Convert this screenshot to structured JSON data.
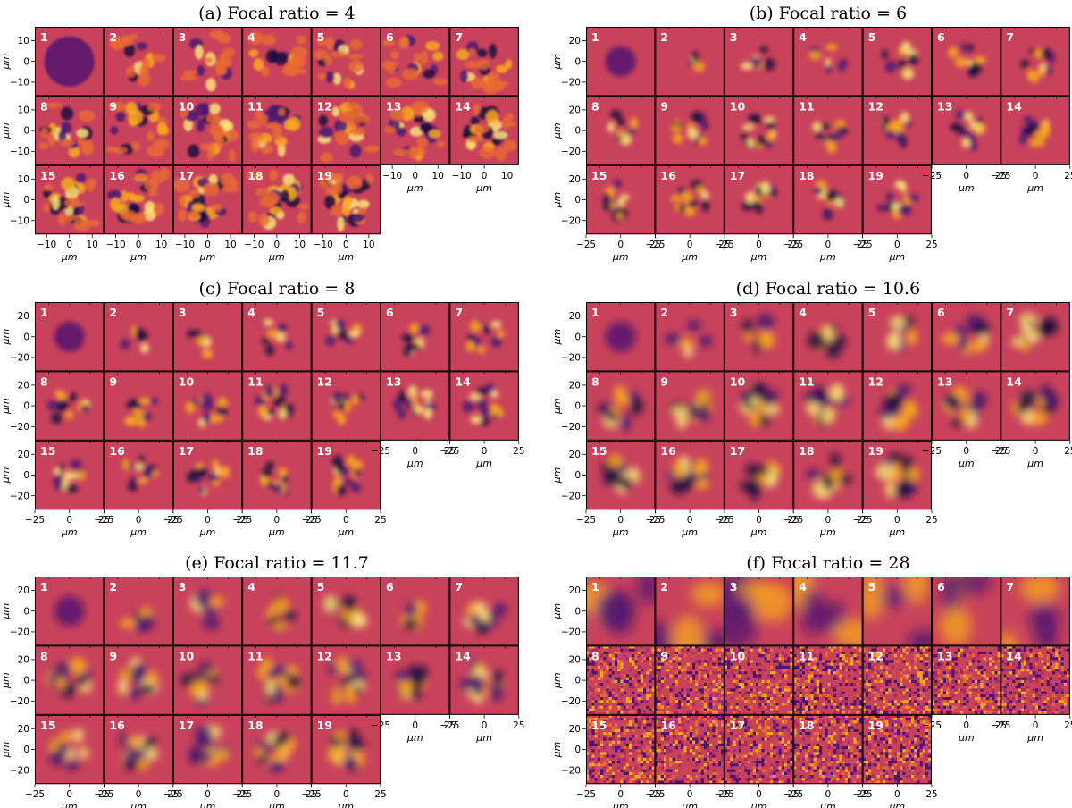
{
  "figure": {
    "colormap": [
      "#1c0b3d",
      "#4c1470",
      "#a22c6e",
      "#c8425b",
      "#ea6a33",
      "#f9a91c",
      "#fbe27a"
    ],
    "background_color": "#c8425b",
    "panels": [
      {
        "title": "(a) Focal ratio = 4",
        "x_label": "μm",
        "y_label": "μm",
        "x_ticks": [
          "−10",
          "0",
          "10"
        ],
        "y_ticks": [
          "10",
          "0",
          "−10"
        ],
        "xlim": [
          -15,
          15
        ],
        "ylim": [
          -15,
          15
        ],
        "modes": [
          "1",
          "2",
          "3",
          "4",
          "5",
          "6",
          "7",
          "8",
          "9",
          "10",
          "11",
          "12",
          "13",
          "14",
          "15",
          "16",
          "17",
          "18",
          "19"
        ]
      },
      {
        "title": "(b) Focal ratio = 6",
        "x_label": "μm",
        "y_label": "μm",
        "x_ticks": [
          "−25",
          "0",
          "25"
        ],
        "y_ticks": [
          "20",
          "0",
          "−20"
        ],
        "xlim": [
          -25,
          25
        ],
        "ylim": [
          -25,
          25
        ],
        "modes": [
          "1",
          "2",
          "3",
          "4",
          "5",
          "6",
          "7",
          "8",
          "9",
          "10",
          "11",
          "12",
          "13",
          "14",
          "15",
          "16",
          "17",
          "18",
          "19"
        ]
      },
      {
        "title": "(c) Focal ratio = 8",
        "x_label": "μm",
        "y_label": "μm",
        "x_ticks": [
          "−25",
          "0",
          "25"
        ],
        "y_ticks": [
          "20",
          "0",
          "−20"
        ],
        "xlim": [
          -25,
          25
        ],
        "ylim": [
          -25,
          25
        ],
        "modes": [
          "1",
          "2",
          "3",
          "4",
          "5",
          "6",
          "7",
          "8",
          "9",
          "10",
          "11",
          "12",
          "13",
          "14",
          "15",
          "16",
          "17",
          "18",
          "19"
        ]
      },
      {
        "title": "(d) Focal ratio = 10.6",
        "x_label": "μm",
        "y_label": "μm",
        "x_ticks": [
          "−25",
          "0",
          "25"
        ],
        "y_ticks": [
          "20",
          "0",
          "−20"
        ],
        "xlim": [
          -25,
          25
        ],
        "ylim": [
          -25,
          25
        ],
        "modes": [
          "1",
          "2",
          "3",
          "4",
          "5",
          "6",
          "7",
          "8",
          "9",
          "10",
          "11",
          "12",
          "13",
          "14",
          "15",
          "16",
          "17",
          "18",
          "19"
        ]
      },
      {
        "title": "(e) Focal ratio = 11.7",
        "x_label": "μm",
        "y_label": "μm",
        "x_ticks": [
          "−25",
          "0",
          "25"
        ],
        "y_ticks": [
          "20",
          "0",
          "−20"
        ],
        "xlim": [
          -25,
          25
        ],
        "ylim": [
          -25,
          25
        ],
        "modes": [
          "1",
          "2",
          "3",
          "4",
          "5",
          "6",
          "7",
          "8",
          "9",
          "10",
          "11",
          "12",
          "13",
          "14",
          "15",
          "16",
          "17",
          "18",
          "19"
        ]
      },
      {
        "title": "(f) Focal ratio = 28",
        "x_label": "μm",
        "y_label": "μm",
        "x_ticks": [
          "−25",
          "0",
          "25"
        ],
        "y_ticks": [
          "20",
          "0",
          "−20"
        ],
        "xlim": [
          -25,
          25
        ],
        "ylim": [
          -25,
          25
        ],
        "modes": [
          "1",
          "2",
          "3",
          "4",
          "5",
          "6",
          "7",
          "8",
          "9",
          "10",
          "11",
          "12",
          "13",
          "14",
          "15",
          "16",
          "17",
          "18",
          "19"
        ]
      }
    ]
  }
}
